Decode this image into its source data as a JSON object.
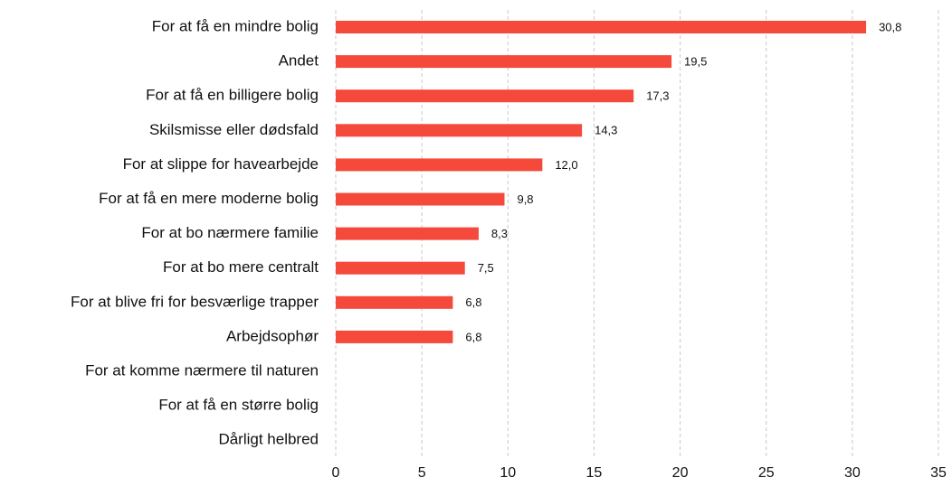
{
  "chart_data": {
    "type": "bar",
    "orientation": "horizontal",
    "categories": [
      "For at få en mindre bolig",
      "Andet",
      "For at få en billigere bolig",
      "Skilsmisse eller dødsfald",
      "For at slippe for havearbejde",
      "For at få en mere moderne bolig",
      "For at bo nærmere familie",
      "For at bo mere centralt",
      "For at blive fri for besværlige trapper",
      "Arbejdsophør",
      "For at komme nærmere til naturen",
      "For at få en større bolig",
      "Dårligt helbred"
    ],
    "values": [
      30.8,
      19.5,
      17.3,
      14.3,
      12.0,
      9.8,
      8.3,
      7.5,
      6.8,
      6.8,
      null,
      null,
      null
    ],
    "value_labels": [
      "30,8",
      "19,5",
      "17,3",
      "14,3",
      "12,0",
      "9,8",
      "8,3",
      "7,5",
      "6,8",
      "6,8",
      null,
      null,
      null
    ],
    "color": "#f4493b",
    "xlim": [
      0,
      35
    ],
    "xticks": [
      0,
      5,
      10,
      15,
      20,
      25,
      30,
      35
    ],
    "grid": true
  }
}
